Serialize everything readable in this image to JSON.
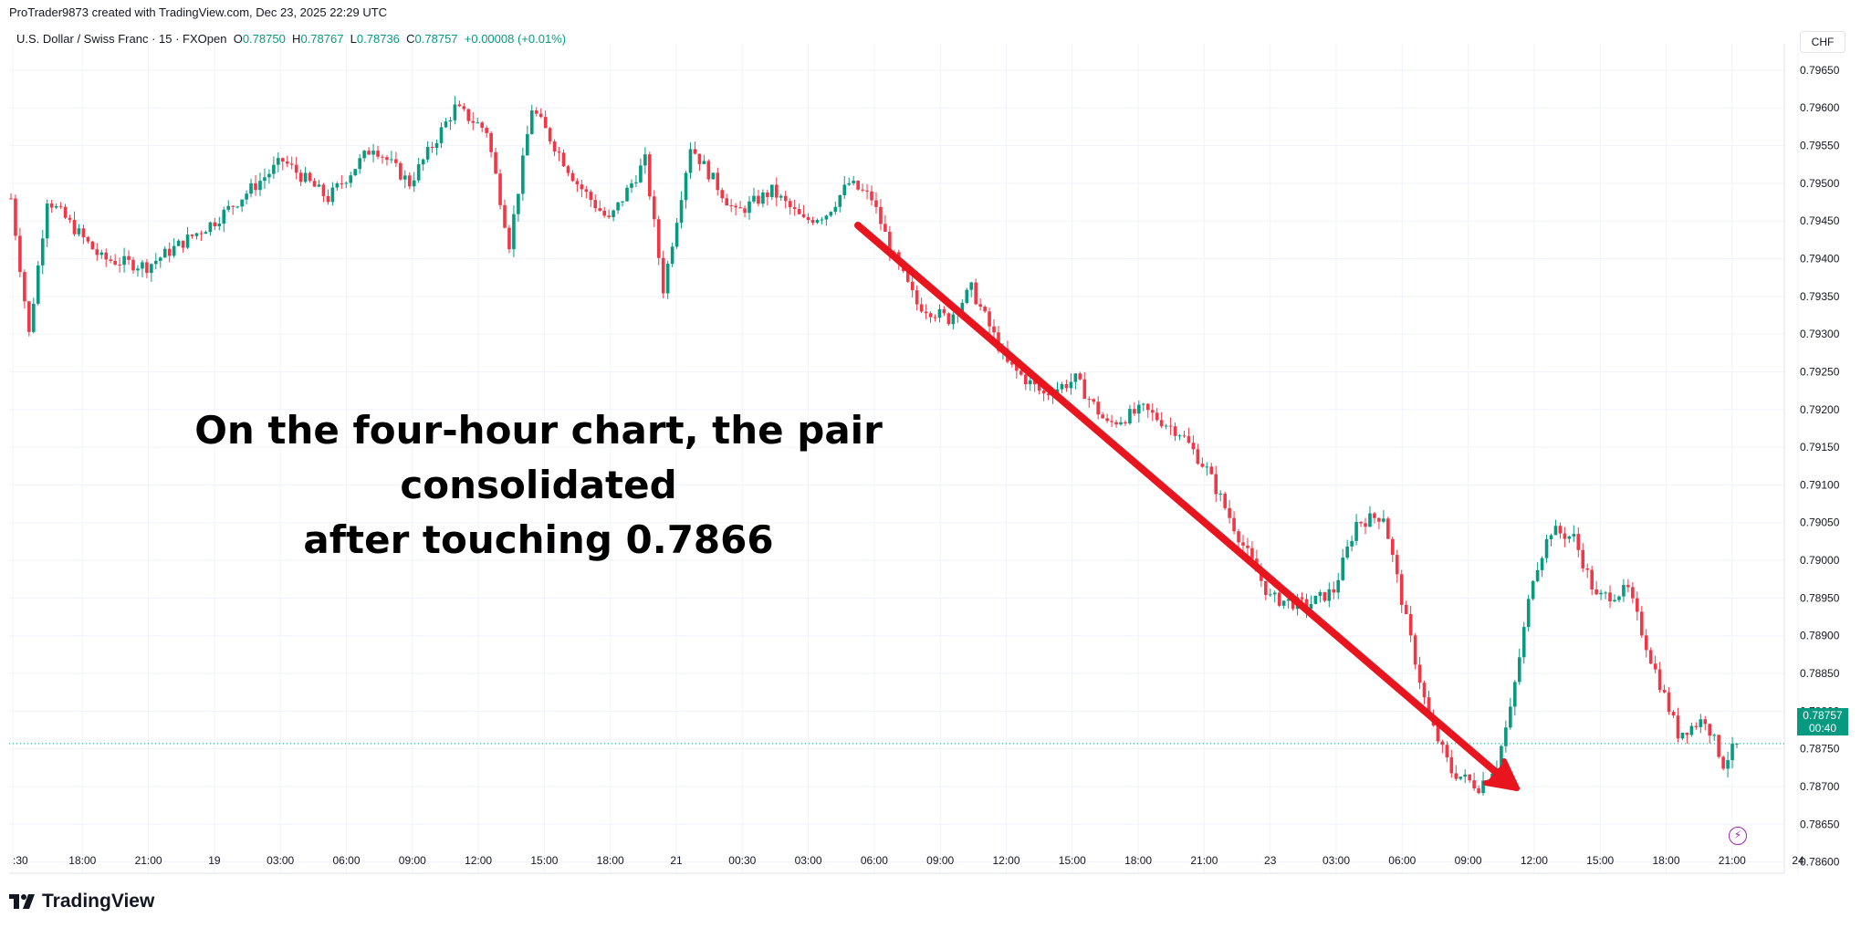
{
  "header": {
    "caption": "ProTrader9873 created with TradingView.com, Dec 23, 2025 22:29 UTC"
  },
  "legend": {
    "symbol": "U.S. Dollar / Swiss Franc · 15 · FXOpen",
    "open_label": "O",
    "open": "0.78750",
    "high_label": "H",
    "high": "0.78767",
    "low_label": "L",
    "low": "0.78736",
    "close_label": "C",
    "close": "0.78757",
    "change": "+0.00008 (+0.01%)"
  },
  "currency": "CHF",
  "last_price": {
    "value": "0.78757",
    "countdown": "00:40"
  },
  "annotation": {
    "line1": "On the four-hour chart, the pair consolidated",
    "line2": "after touching 0.7866"
  },
  "branding": {
    "name": "TradingView"
  },
  "colors": {
    "up": "#089981",
    "down": "#f23645",
    "arrow": "#e8141e",
    "grid": "#f0f3fa",
    "axis_text": "#131722"
  },
  "icons": {
    "bolt": "lightning-bolt-icon",
    "logo": "tradingview-logo-icon"
  },
  "chart_data": {
    "type": "candlestick",
    "ylim": [
      0.78585,
      0.79685
    ],
    "y_ticks": [
      "0.79650",
      "0.79600",
      "0.79550",
      "0.79500",
      "0.79450",
      "0.79400",
      "0.79350",
      "0.79300",
      "0.79250",
      "0.79200",
      "0.79150",
      "0.79100",
      "0.79050",
      "0.79000",
      "0.78950",
      "0.78900",
      "0.78850",
      "0.78800",
      "0.78750",
      "0.78700",
      "0.78650",
      "0.78600"
    ],
    "x_ticks": [
      ":30",
      "18:00",
      "21:00",
      "19",
      "03:00",
      "06:00",
      "09:00",
      "12:00",
      "15:00",
      "18:00",
      "21",
      "00:30",
      "03:00",
      "06:00",
      "09:00",
      "12:00",
      "15:00",
      "18:00",
      "21:00",
      "23",
      "03:00",
      "06:00",
      "09:00",
      "12:00",
      "15:00",
      "18:00",
      "21:00",
      "24"
    ],
    "last_price": 0.78757,
    "anchors": [
      {
        "i": 0,
        "p": 0.7948
      },
      {
        "i": 4,
        "p": 0.793
      },
      {
        "i": 8,
        "p": 0.7948
      },
      {
        "i": 20,
        "p": 0.794
      },
      {
        "i": 30,
        "p": 0.7939
      },
      {
        "i": 45,
        "p": 0.7945
      },
      {
        "i": 60,
        "p": 0.7953
      },
      {
        "i": 70,
        "p": 0.7948
      },
      {
        "i": 80,
        "p": 0.7955
      },
      {
        "i": 88,
        "p": 0.795
      },
      {
        "i": 98,
        "p": 0.796
      },
      {
        "i": 105,
        "p": 0.7957
      },
      {
        "i": 110,
        "p": 0.7942
      },
      {
        "i": 115,
        "p": 0.796
      },
      {
        "i": 125,
        "p": 0.795
      },
      {
        "i": 132,
        "p": 0.7945
      },
      {
        "i": 140,
        "p": 0.7953
      },
      {
        "i": 144,
        "p": 0.7936
      },
      {
        "i": 150,
        "p": 0.7955
      },
      {
        "i": 160,
        "p": 0.7946
      },
      {
        "i": 168,
        "p": 0.7949
      },
      {
        "i": 175,
        "p": 0.7945
      },
      {
        "i": 180,
        "p": 0.7946
      },
      {
        "i": 185,
        "p": 0.795
      },
      {
        "i": 190,
        "p": 0.7948
      },
      {
        "i": 195,
        "p": 0.794
      },
      {
        "i": 200,
        "p": 0.7934
      },
      {
        "i": 207,
        "p": 0.7932
      },
      {
        "i": 212,
        "p": 0.7936
      },
      {
        "i": 220,
        "p": 0.7926
      },
      {
        "i": 228,
        "p": 0.7922
      },
      {
        "i": 235,
        "p": 0.7924
      },
      {
        "i": 242,
        "p": 0.7918
      },
      {
        "i": 250,
        "p": 0.792
      },
      {
        "i": 258,
        "p": 0.7917
      },
      {
        "i": 264,
        "p": 0.7912
      },
      {
        "i": 272,
        "p": 0.7902
      },
      {
        "i": 278,
        "p": 0.7895
      },
      {
        "i": 286,
        "p": 0.7894
      },
      {
        "i": 292,
        "p": 0.7896
      },
      {
        "i": 297,
        "p": 0.7905
      },
      {
        "i": 303,
        "p": 0.7906
      },
      {
        "i": 308,
        "p": 0.7892
      },
      {
        "i": 313,
        "p": 0.7879
      },
      {
        "i": 318,
        "p": 0.7872
      },
      {
        "i": 324,
        "p": 0.787
      },
      {
        "i": 328,
        "p": 0.7873
      },
      {
        "i": 331,
        "p": 0.788
      },
      {
        "i": 336,
        "p": 0.7898
      },
      {
        "i": 340,
        "p": 0.7904
      },
      {
        "i": 345,
        "p": 0.7903
      },
      {
        "i": 350,
        "p": 0.7895
      },
      {
        "i": 357,
        "p": 0.7896
      },
      {
        "i": 362,
        "p": 0.7887
      },
      {
        "i": 368,
        "p": 0.7877
      },
      {
        "i": 374,
        "p": 0.7879
      },
      {
        "i": 378,
        "p": 0.7873
      },
      {
        "i": 381,
        "p": 0.78757
      }
    ],
    "candle_count": 382
  }
}
